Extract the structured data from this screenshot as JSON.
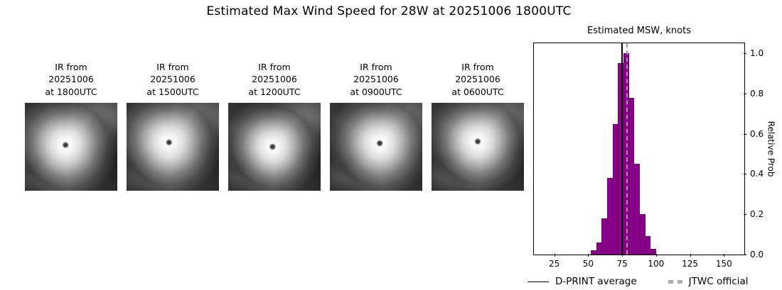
{
  "title": "Estimated Max Wind Speed for 28W at 20251006 1800UTC",
  "panels": [
    {
      "line1": "IR from",
      "line2": "20251006",
      "line3": "at 1800UTC"
    },
    {
      "line1": "IR from",
      "line2": "20251006",
      "line3": "at 1500UTC"
    },
    {
      "line1": "IR from",
      "line2": "20251006",
      "line3": "at 1200UTC"
    },
    {
      "line1": "IR from",
      "line2": "20251006",
      "line3": "at 0900UTC"
    },
    {
      "line1": "IR from",
      "line2": "20251006",
      "line3": "at 0600UTC"
    }
  ],
  "chart_data": {
    "type": "bar",
    "title": "Estimated MSW, knots",
    "ylabel": "Relative Prob",
    "x": [
      54,
      58,
      62,
      66,
      70,
      74,
      78,
      82,
      86,
      90,
      94,
      98
    ],
    "values": [
      0.02,
      0.06,
      0.18,
      0.38,
      0.65,
      0.95,
      1.0,
      0.78,
      0.45,
      0.2,
      0.09,
      0.03
    ],
    "bin_width": 4,
    "xlim": [
      10,
      165
    ],
    "ylim": [
      0,
      1.05
    ],
    "xticks": [
      25,
      50,
      75,
      100,
      125,
      150
    ],
    "yticks": [
      0.0,
      0.2,
      0.4,
      0.6,
      0.8,
      1.0
    ],
    "bar_color": "#8B008B",
    "dprint_average": 75,
    "jtwc_official": 78,
    "legend": [
      {
        "label": "D-PRINT average",
        "style": "solid-black-line"
      },
      {
        "label": "JTWC official",
        "style": "dashed-gray-line",
        "color": "#b0b0b0"
      }
    ]
  }
}
